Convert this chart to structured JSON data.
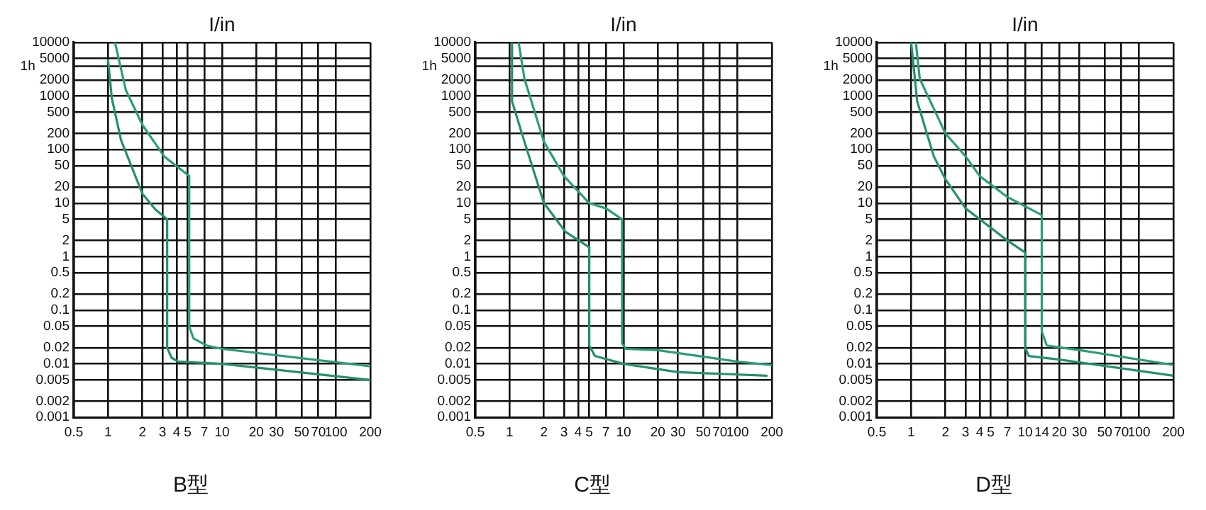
{
  "chart_data": [
    {
      "type": "line",
      "title": "B型",
      "xlabel": "I/in",
      "log": "xy",
      "grid": true,
      "marker": "none",
      "xlim": [
        0.5,
        200
      ],
      "xticks": [
        0.5,
        1,
        2,
        3,
        4,
        5,
        7,
        10,
        20,
        30,
        50,
        70,
        100,
        200
      ],
      "ylim": [
        0.001,
        10000
      ],
      "yticks": [
        10000,
        5000,
        2000,
        1000,
        500,
        200,
        100,
        50,
        20,
        10,
        5,
        2,
        1,
        0.5,
        0.2,
        0.1,
        0.05,
        0.02,
        0.01,
        0.005,
        0.002,
        0.001
      ],
      "ref_lines": [
        {
          "axis": "y",
          "value": 3600,
          "label": "1h"
        }
      ],
      "series": [
        {
          "color": "#2a9d7c",
          "x": [
            1.15,
            1.43,
            2,
            3.1,
            5.15,
            5.15,
            5.6,
            7.3,
            10,
            200
          ],
          "values": [
            10000,
            1300,
            290,
            75,
            32,
            0.05,
            0.03,
            0.022,
            0.019,
            0.009
          ]
        },
        {
          "color": "#24906f",
          "x": [
            1,
            1.08,
            1.3,
            2,
            2.6,
            3.3,
            3.3,
            3.6,
            4.1,
            10,
            200
          ],
          "values": [
            4700,
            900,
            150,
            15,
            7.6,
            5,
            0.02,
            0.013,
            0.011,
            0.01,
            0.005
          ]
        }
      ]
    },
    {
      "type": "line",
      "title": "C型",
      "xlabel": "I/in",
      "log": "xy",
      "grid": true,
      "marker": "none",
      "xlim": [
        0.5,
        200
      ],
      "xticks": [
        0.5,
        1,
        2,
        3,
        4,
        5,
        7,
        10,
        20,
        30,
        50,
        70,
        100,
        200
      ],
      "ylim": [
        0.001,
        10000
      ],
      "yticks": [
        10000,
        5000,
        2000,
        1000,
        500,
        200,
        100,
        50,
        20,
        10,
        5,
        2,
        1,
        0.5,
        0.2,
        0.1,
        0.05,
        0.02,
        0.01,
        0.005,
        0.002,
        0.001
      ],
      "ref_lines": [
        {
          "axis": "y",
          "value": 3600,
          "label": "1h"
        }
      ],
      "series": [
        {
          "color": "#2a9d7c",
          "x": [
            1.2,
            1.35,
            2,
            3,
            5,
            7,
            9.7,
            9.7,
            10.5,
            20,
            100,
            200
          ],
          "values": [
            10000,
            2100,
            140,
            32,
            10,
            8,
            5,
            0.024,
            0.019,
            0.018,
            0.011,
            0.0095
          ]
        },
        {
          "color": "#24906f",
          "x": [
            1.05,
            1.05,
            1.35,
            2,
            3.1,
            5,
            5,
            5.6,
            10,
            30,
            180
          ],
          "values": [
            10000,
            800,
            140,
            10,
            2.9,
            1.5,
            0.022,
            0.014,
            0.01,
            0.007,
            0.006
          ]
        }
      ]
    },
    {
      "type": "line",
      "title": "D型",
      "xlabel": "I/in",
      "log": "xy",
      "grid": true,
      "marker": "none",
      "xlim": [
        0.5,
        200
      ],
      "xticks": [
        0.5,
        1,
        2,
        3,
        4,
        5,
        7,
        10,
        14,
        20,
        30,
        50,
        70,
        100,
        200
      ],
      "ylim": [
        0.001,
        10000
      ],
      "yticks": [
        10000,
        5000,
        2000,
        1000,
        500,
        200,
        100,
        50,
        20,
        10,
        5,
        2,
        1,
        0.5,
        0.2,
        0.1,
        0.05,
        0.02,
        0.01,
        0.005,
        0.002,
        0.001
      ],
      "ref_lines": [
        {
          "axis": "y",
          "value": 3600,
          "label": "1h"
        }
      ],
      "series": [
        {
          "color": "#2a9d7c",
          "x": [
            1.1,
            1.19,
            2,
            3,
            4,
            7,
            14,
            14,
            15.5,
            30,
            200
          ],
          "values": [
            10000,
            2100,
            200,
            75,
            32,
            13,
            6,
            0.04,
            0.022,
            0.018,
            0.0095
          ]
        },
        {
          "color": "#24906f",
          "x": [
            1,
            1.13,
            1.58,
            2,
            3,
            4,
            7,
            10,
            10,
            10.8,
            20,
            200
          ],
          "values": [
            10000,
            800,
            75,
            28,
            8,
            5,
            2,
            1.2,
            0.02,
            0.014,
            0.012,
            0.006
          ]
        }
      ]
    }
  ]
}
